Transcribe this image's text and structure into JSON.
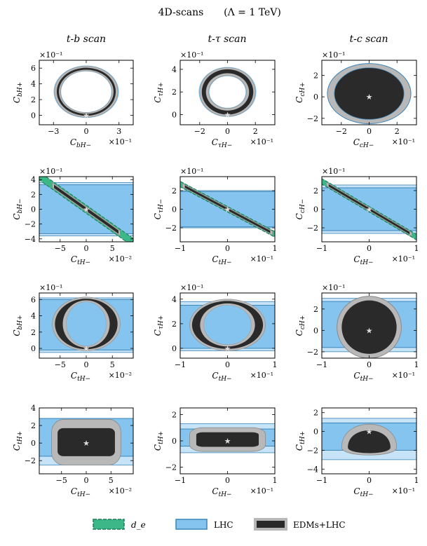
{
  "figure": {
    "title": "4D-scans",
    "title_param": "(Λ = 1 TeV)",
    "columns": [
      "t-b scan",
      "t-τ scan",
      "t-c scan"
    ],
    "legend": [
      {
        "key": "de",
        "label": "d_e",
        "color": "#3cb888"
      },
      {
        "key": "lhc",
        "label": "LHC",
        "color": "#85c4ee"
      },
      {
        "key": "edm",
        "label": "EDMs+LHC",
        "color": "#2a2a2a",
        "edge": "#b4b4b4"
      }
    ],
    "colors": {
      "de": "#3cb888",
      "de_edge": "#1d7a57",
      "lhc": "#85c4ee",
      "lhc_light": "#c6e3f7",
      "lhc_edge": "#3d85b8",
      "edm_dark": "#2a2a2a",
      "edm_light": "#b8b8b8",
      "edm_edge": "#8a8a8a",
      "star": "#dddddd"
    }
  },
  "chart_data": [
    {
      "type": "area",
      "panel": "r1c1",
      "column": "t-b scan",
      "xlabel_main": "C",
      "xlabel_sub": "bH−",
      "ylabel_main": "C",
      "ylabel_sub": "bH+",
      "xlim": [
        -4.3,
        4.3
      ],
      "ylim": [
        -1.2,
        7.0
      ],
      "xticks": [
        -3,
        0,
        3
      ],
      "yticks": [
        0,
        2,
        4,
        6
      ],
      "xmult": "×10⁻¹",
      "ymult": "×10⁻¹",
      "star": [
        0,
        0
      ],
      "ring": {
        "cx": 0,
        "cy": 3.0,
        "outer": [
          2.9,
          3.25
        ],
        "inner": [
          2.35,
          2.65
        ],
        "dark_outer": [
          2.7,
          3.05
        ],
        "dark_inner": [
          2.5,
          2.8
        ]
      }
    },
    {
      "type": "area",
      "panel": "r1c2",
      "column": "t-τ scan",
      "xlabel_main": "C",
      "xlabel_sub": "τH−",
      "ylabel_main": "C",
      "ylabel_sub": "τH+",
      "xlim": [
        -3.4,
        3.4
      ],
      "ylim": [
        -0.9,
        4.8
      ],
      "xticks": [
        -2,
        0,
        2
      ],
      "yticks": [
        0,
        2,
        4
      ],
      "xmult": "×10⁻¹",
      "ymult": "×10⁻¹",
      "star": [
        0,
        0
      ],
      "ring": {
        "cx": 0,
        "cy": 2.0,
        "outer": [
          2.0,
          2.15
        ],
        "inner": [
          1.35,
          1.45
        ],
        "dark_outer": [
          1.85,
          2.0
        ],
        "dark_inner": [
          1.55,
          1.65
        ]
      }
    },
    {
      "type": "area",
      "panel": "r1c3",
      "column": "t-c scan",
      "xlabel_main": "C",
      "xlabel_sub": "cH−",
      "ylabel_main": "C",
      "ylabel_sub": "cH+",
      "xlim": [
        -3.4,
        3.4
      ],
      "ylim": [
        -2.6,
        3.4
      ],
      "xticks": [
        -2,
        0,
        2
      ],
      "yticks": [
        -2,
        0,
        2
      ],
      "xmult": "×10⁻¹",
      "ymult": "×10⁻¹",
      "star": [
        0,
        0
      ],
      "ellipse": {
        "cx": 0,
        "cy": 0.3,
        "light": [
          3.0,
          2.8
        ],
        "dark": [
          2.5,
          2.4
        ]
      }
    },
    {
      "type": "area",
      "panel": "r2c1",
      "column": "t-b scan",
      "xlabel_main": "C",
      "xlabel_sub": "tH−",
      "ylabel_main": "C",
      "ylabel_sub": "bH−",
      "xlim": [
        -9,
        9
      ],
      "ylim": [
        -4.4,
        4.4
      ],
      "xticks": [
        -5,
        0,
        5
      ],
      "yticks": [
        -4,
        -2,
        0,
        2,
        4
      ],
      "xmult": "×10⁻²",
      "ymult": "×10⁻¹",
      "star": [
        0,
        0
      ],
      "lhc_band": [
        -3.3,
        3.3
      ],
      "lhc_outer": [
        -3.6,
        3.6
      ],
      "diag": {
        "slope": -0.5,
        "de_half": 0.55,
        "edm_half": 0.35,
        "edm_x": [
          -6.5,
          6.5
        ]
      }
    },
    {
      "type": "area",
      "panel": "r2c2",
      "column": "t-τ scan",
      "xlabel_main": "C",
      "xlabel_sub": "tH−",
      "ylabel_main": "C",
      "ylabel_sub": "τH−",
      "xlim": [
        -1,
        1
      ],
      "ylim": [
        -3.5,
        3.5
      ],
      "xticks": [
        -1,
        0,
        1
      ],
      "yticks": [
        -2,
        0,
        2
      ],
      "xmult": "×10⁻¹",
      "ymult": "×10⁻¹",
      "star": [
        0,
        0
      ],
      "lhc_band": [
        -1.9,
        1.9
      ],
      "lhc_outer": [
        -2.0,
        2.0
      ],
      "diag": {
        "slope": -2.7,
        "de_half": 0.3,
        "edm_half": 0.2,
        "edm_x": [
          -0.95,
          0.95
        ]
      }
    },
    {
      "type": "area",
      "panel": "r2c3",
      "column": "t-c scan",
      "xlabel_main": "C",
      "xlabel_sub": "tH−",
      "ylabel_main": "C",
      "ylabel_sub": "cH−",
      "xlim": [
        -1,
        1
      ],
      "ylim": [
        -3.5,
        3.5
      ],
      "xticks": [
        -1,
        0,
        1
      ],
      "yticks": [
        -2,
        0,
        2
      ],
      "xmult": "×10⁻¹",
      "ymult": "×10⁻¹",
      "star": [
        0,
        0
      ],
      "lhc_band": [
        -2.3,
        2.3
      ],
      "lhc_outer": [
        -2.6,
        2.6
      ],
      "diag": {
        "slope": -3.0,
        "de_half": 0.3,
        "edm_half": 0.2,
        "edm_x": [
          -0.9,
          0.9
        ]
      }
    },
    {
      "type": "area",
      "panel": "r3c1",
      "column": "t-b scan",
      "xlabel_main": "C",
      "xlabel_sub": "tH−",
      "ylabel_main": "C",
      "ylabel_sub": "bH+",
      "xlim": [
        -9,
        9
      ],
      "ylim": [
        -1.2,
        6.8
      ],
      "xticks": [
        -5,
        0,
        5
      ],
      "yticks": [
        0,
        2,
        4,
        6
      ],
      "xmult": "×10⁻²",
      "ymult": "×10⁻¹",
      "star": [
        0,
        0
      ],
      "lhc_band": [
        -0.2,
        6.0
      ],
      "lhc_outer": [
        -0.5,
        6.2
      ],
      "ring": {
        "cx": 0,
        "cy": 3.0,
        "outer": [
          6.5,
          3.3
        ],
        "inner": [
          3.8,
          2.7
        ],
        "dark_outer": [
          6.0,
          3.1
        ],
        "dark_inner": [
          4.5,
          2.9
        ]
      }
    },
    {
      "type": "area",
      "panel": "r3c2",
      "column": "t-τ scan",
      "xlabel_main": "C",
      "xlabel_sub": "tH−",
      "ylabel_main": "C",
      "ylabel_sub": "τH+",
      "xlim": [
        -1,
        1
      ],
      "ylim": [
        -0.8,
        4.5
      ],
      "xticks": [
        -1,
        0,
        1
      ],
      "yticks": [
        0,
        2,
        4
      ],
      "xmult": "×10⁻¹",
      "ymult": "×10⁻¹",
      "star": [
        0,
        0
      ],
      "lhc_band": [
        0.0,
        3.5
      ],
      "lhc_outer": [
        -0.2,
        3.8
      ],
      "ring": {
        "cx": 0,
        "cy": 1.9,
        "outer": [
          0.8,
          2.1
        ],
        "inner": [
          0.5,
          1.6
        ],
        "dark_outer": [
          0.75,
          1.95
        ],
        "dark_inner": [
          0.58,
          1.75
        ]
      }
    },
    {
      "type": "area",
      "panel": "r3c3",
      "column": "t-c scan",
      "xlabel_main": "C",
      "xlabel_sub": "tH−",
      "ylabel_main": "C",
      "ylabel_sub": "cH+",
      "xlim": [
        -1,
        1
      ],
      "ylim": [
        -2.6,
        3.5
      ],
      "xticks": [
        -1,
        0,
        1
      ],
      "yticks": [
        -2,
        0,
        2
      ],
      "xmult": "×10⁻¹",
      "ymult": "×10⁻¹",
      "star": [
        0,
        0
      ],
      "lhc_band": [
        -1.6,
        2.7
      ],
      "lhc_outer": [
        -2.0,
        3.0
      ],
      "ellipse": {
        "cx": 0,
        "cy": 0.3,
        "light": [
          0.68,
          2.9
        ],
        "dark": [
          0.58,
          2.5
        ]
      }
    },
    {
      "type": "area",
      "panel": "r4c1",
      "column": "t-b scan",
      "xlabel_main": "C",
      "xlabel_sub": "tH−",
      "ylabel_main": "C",
      "ylabel_sub": "tH+",
      "xlim": [
        -9.5,
        9.5
      ],
      "ylim": [
        -3.5,
        4.0
      ],
      "xticks": [
        -5,
        0,
        5
      ],
      "yticks": [
        -2,
        0,
        2,
        4
      ],
      "xmult": "×10⁻²",
      "ymult": "",
      "star": [
        0,
        0
      ],
      "lhc_band": [
        -1.5,
        2.8
      ],
      "lhc_outer": [
        -2.5,
        2.8
      ],
      "blob": {
        "cx": 0,
        "cy": 0.1,
        "light": [
          7.0,
          2.6
        ],
        "dark": [
          5.8,
          1.6
        ]
      }
    },
    {
      "type": "area",
      "panel": "r4c2",
      "column": "t-τ scan",
      "xlabel_main": "C",
      "xlabel_sub": "tH−",
      "ylabel_main": "C",
      "ylabel_sub": "tH+",
      "xlim": [
        -1,
        1
      ],
      "ylim": [
        -2.5,
        2.5
      ],
      "xticks": [
        -1,
        0,
        1
      ],
      "yticks": [
        -2,
        0,
        2
      ],
      "xmult": "×10⁻¹",
      "ymult": "",
      "star": [
        0,
        0
      ],
      "lhc_band": [
        -0.4,
        0.9
      ],
      "lhc_outer": [
        -0.9,
        1.3
      ],
      "blob": {
        "cx": 0,
        "cy": 0.1,
        "light": [
          0.8,
          0.9
        ],
        "dark": [
          0.66,
          0.55
        ]
      }
    },
    {
      "type": "area",
      "panel": "r4c3",
      "column": "t-c scan",
      "xlabel_main": "C",
      "xlabel_sub": "tH−",
      "ylabel_main": "C",
      "ylabel_sub": "tH+",
      "xlim": [
        -1,
        1
      ],
      "ylim": [
        -4.5,
        2.5
      ],
      "xticks": [
        -1,
        0,
        1
      ],
      "yticks": [
        -4,
        -2,
        0,
        2
      ],
      "xmult": "×10⁻¹",
      "ymult": "",
      "star": [
        0,
        0
      ],
      "lhc_band": [
        -2.0,
        0.9
      ],
      "lhc_outer": [
        -3.0,
        1.4
      ],
      "dome": {
        "cx": 0,
        "base": -1.7,
        "light": [
          0.58,
          3.0,
          1.2
        ],
        "dark": [
          0.45,
          2.2,
          0.9
        ]
      }
    }
  ]
}
